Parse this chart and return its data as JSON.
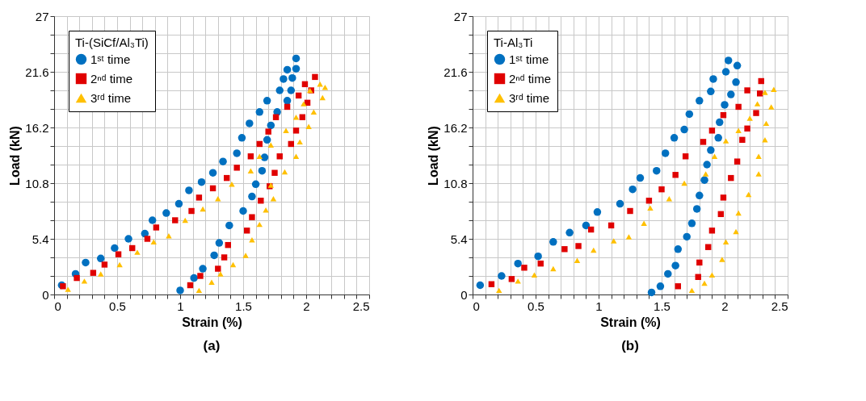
{
  "chart_data": [
    {
      "type": "scatter",
      "legend_title": "Ti-(SiCf/Al₃Ti)",
      "xlabel": "Strain (%)",
      "ylabel": "Load (kN)",
      "annotations": [
        "(a)"
      ],
      "legend": "top left",
      "grid": true,
      "xlim": [
        0,
        2.5
      ],
      "ylim": [
        0,
        27
      ],
      "xticks": [
        0,
        {
          "value": 0.1,
          "label": null
        },
        {
          "value": 0.2,
          "label": null
        },
        {
          "value": 0.3,
          "label": null
        },
        {
          "value": 0.4,
          "label": null
        },
        0.5,
        {
          "value": 0.6,
          "label": null
        },
        {
          "value": 0.7,
          "label": null
        },
        {
          "value": 0.8,
          "label": null
        },
        {
          "value": 0.9,
          "label": null
        },
        1,
        {
          "value": 1.1,
          "label": null
        },
        {
          "value": 1.2,
          "label": null
        },
        {
          "value": 1.3,
          "label": null
        },
        {
          "value": 1.4,
          "label": null
        },
        1.5,
        {
          "value": 1.6,
          "label": null
        },
        {
          "value": 1.7,
          "label": null
        },
        {
          "value": 1.8,
          "label": null
        },
        {
          "value": 1.9,
          "label": null
        },
        2,
        {
          "value": 2.1,
          "label": null
        },
        {
          "value": 2.2,
          "label": null
        },
        {
          "value": 2.3,
          "label": null
        },
        {
          "value": 2.4,
          "label": null
        },
        2.5
      ],
      "yticks": [
        0,
        {
          "value": 1.8,
          "label": null
        },
        {
          "value": 3.6,
          "label": null
        },
        5.4,
        {
          "value": 7.2,
          "label": null
        },
        {
          "value": 9,
          "label": null
        },
        10.8,
        {
          "value": 12.6,
          "label": null
        },
        {
          "value": 14.4,
          "label": null
        },
        16.2,
        {
          "value": 18,
          "label": null
        },
        {
          "value": 19.8,
          "label": null
        },
        21.6,
        {
          "value": 23.4,
          "label": null
        },
        {
          "value": 25.2,
          "label": null
        },
        27
      ],
      "series": [
        {
          "name": "1ˢᵗ time",
          "color": "#0070c0",
          "marker": "circle",
          "x": [
            0.06,
            0.17,
            0.25,
            0.37,
            0.48,
            0.59,
            0.72,
            0.78,
            0.89,
            0.99,
            1.07,
            1.17,
            1.26,
            1.34,
            1.45,
            1.49,
            1.55,
            1.63,
            1.69,
            1.79,
            1.82,
            1.85,
            1.92,
            1.92,
            1.89,
            1.88,
            1.85,
            1.77,
            1.72,
            1.69,
            1.67,
            1.65,
            1.6,
            1.57,
            1.5,
            1.39,
            1.31,
            1.27,
            1.18,
            1.11,
            1.0
          ],
          "values": [
            0.9,
            2.0,
            3.1,
            3.5,
            4.5,
            5.4,
            5.9,
            7.2,
            7.9,
            8.8,
            10.1,
            10.9,
            11.8,
            12.9,
            13.7,
            15.2,
            16.6,
            17.7,
            18.8,
            19.8,
            20.9,
            21.8,
            22.9,
            21.9,
            21.0,
            19.8,
            18.8,
            17.7,
            16.4,
            15.0,
            13.3,
            12.0,
            10.7,
            9.5,
            8.1,
            6.7,
            5.0,
            3.8,
            2.5,
            1.6,
            0.4
          ]
        },
        {
          "name": "2ⁿᵈ time",
          "color": "#e00000",
          "marker": "square",
          "x": [
            0.07,
            0.18,
            0.31,
            0.4,
            0.51,
            0.62,
            0.74,
            0.81,
            0.96,
            1.09,
            1.15,
            1.26,
            1.37,
            1.45,
            1.56,
            1.63,
            1.7,
            1.76,
            1.85,
            1.94,
            1.99,
            2.07,
            2.04,
            2.01,
            1.97,
            1.92,
            1.88,
            1.79,
            1.75,
            1.71,
            1.64,
            1.57,
            1.53,
            1.38,
            1.35,
            1.3,
            1.16,
            1.08
          ],
          "values": [
            0.8,
            1.6,
            2.1,
            2.9,
            3.9,
            4.5,
            5.4,
            6.5,
            7.2,
            8.1,
            9.4,
            10.3,
            11.3,
            12.3,
            13.4,
            14.6,
            15.8,
            17.2,
            18.2,
            19.3,
            20.4,
            21.1,
            19.8,
            18.6,
            17.2,
            15.9,
            14.6,
            13.4,
            11.8,
            10.5,
            9.1,
            7.5,
            6.2,
            4.8,
            3.6,
            2.5,
            1.8,
            0.9
          ]
        },
        {
          "name": "3ʳᵈ time",
          "color": "#ffc000",
          "marker": "triangle",
          "x": [
            0.11,
            0.24,
            0.37,
            0.52,
            0.66,
            0.79,
            0.91,
            1.04,
            1.18,
            1.3,
            1.41,
            1.56,
            1.63,
            1.72,
            1.84,
            1.92,
            1.98,
            2.03,
            2.11,
            2.15,
            2.13,
            2.06,
            2.02,
            1.95,
            1.92,
            1.83,
            1.72,
            1.74,
            1.68,
            1.63,
            1.57,
            1.52,
            1.42,
            1.32,
            1.25,
            1.15
          ],
          "values": [
            0.5,
            1.3,
            2.0,
            2.9,
            4.1,
            5.1,
            5.7,
            7.2,
            8.3,
            9.3,
            10.7,
            12.0,
            13.4,
            14.5,
            15.9,
            17.2,
            18.5,
            19.8,
            20.4,
            20.1,
            19.1,
            17.7,
            16.3,
            14.8,
            13.4,
            11.9,
            10.6,
            9.3,
            8.2,
            6.8,
            5.3,
            3.8,
            2.9,
            2.0,
            1.2,
            0.4
          ]
        }
      ]
    },
    {
      "type": "scatter",
      "legend_title": "Ti-Al₃Ti",
      "xlabel": "Strain (%)",
      "ylabel": "Load (kN)",
      "annotations": [
        "(b)"
      ],
      "legend": "top left",
      "grid": true,
      "xlim": [
        0,
        2.5
      ],
      "ylim": [
        0,
        27
      ],
      "xticks": [
        0,
        {
          "value": 0.1,
          "label": null
        },
        {
          "value": 0.2,
          "label": null
        },
        {
          "value": 0.3,
          "label": null
        },
        {
          "value": 0.4,
          "label": null
        },
        0.5,
        {
          "value": 0.6,
          "label": null
        },
        {
          "value": 0.7,
          "label": null
        },
        {
          "value": 0.8,
          "label": null
        },
        {
          "value": 0.9,
          "label": null
        },
        1,
        {
          "value": 1.1,
          "label": null
        },
        {
          "value": 1.2,
          "label": null
        },
        {
          "value": 1.3,
          "label": null
        },
        {
          "value": 1.4,
          "label": null
        },
        1.5,
        {
          "value": 1.6,
          "label": null
        },
        {
          "value": 1.7,
          "label": null
        },
        {
          "value": 1.8,
          "label": null
        },
        {
          "value": 1.9,
          "label": null
        },
        2,
        {
          "value": 2.1,
          "label": null
        },
        {
          "value": 2.2,
          "label": null
        },
        {
          "value": 2.3,
          "label": null
        },
        {
          "value": 2.4,
          "label": null
        },
        2.5
      ],
      "yticks": [
        0,
        {
          "value": 1.8,
          "label": null
        },
        {
          "value": 3.6,
          "label": null
        },
        5.4,
        {
          "value": 7.2,
          "label": null
        },
        {
          "value": 9,
          "label": null
        },
        10.8,
        {
          "value": 12.6,
          "label": null
        },
        {
          "value": 14.4,
          "label": null
        },
        16.2,
        {
          "value": 18,
          "label": null
        },
        {
          "value": 19.8,
          "label": null
        },
        21.6,
        {
          "value": 23.4,
          "label": null
        },
        {
          "value": 25.2,
          "label": null
        },
        27
      ],
      "series": [
        {
          "name": "1ˢᵗ time",
          "color": "#0070c0",
          "marker": "circle",
          "x": [
            0.06,
            0.23,
            0.36,
            0.52,
            0.64,
            0.77,
            0.9,
            0.99,
            1.17,
            1.27,
            1.33,
            1.46,
            1.53,
            1.6,
            1.68,
            1.72,
            1.8,
            1.89,
            1.91,
            2.01,
            2.03,
            2.1,
            2.09,
            2.05,
            2.0,
            1.96,
            1.95,
            1.89,
            1.86,
            1.84,
            1.8,
            1.78,
            1.74,
            1.7,
            1.63,
            1.61,
            1.55,
            1.49,
            1.42
          ],
          "values": [
            0.9,
            1.8,
            3.0,
            3.7,
            5.1,
            6.0,
            6.7,
            8.0,
            8.8,
            10.2,
            11.3,
            12.0,
            13.7,
            15.2,
            16.0,
            17.5,
            18.8,
            19.7,
            20.9,
            21.6,
            22.7,
            22.2,
            20.6,
            19.4,
            18.4,
            16.7,
            15.2,
            14.0,
            12.6,
            11.1,
            9.6,
            8.3,
            6.9,
            5.6,
            4.4,
            2.8,
            2.0,
            0.8,
            0.2
          ]
        },
        {
          "name": "2ⁿᵈ time",
          "color": "#e00000",
          "marker": "square",
          "x": [
            0.15,
            0.31,
            0.41,
            0.54,
            0.73,
            0.84,
            0.94,
            1.1,
            1.25,
            1.4,
            1.5,
            1.61,
            1.69,
            1.83,
            1.9,
            1.99,
            2.11,
            2.18,
            2.29,
            2.28,
            2.25,
            2.18,
            2.14,
            2.1,
            2.05,
            1.99,
            1.97,
            1.9,
            1.87,
            1.8,
            1.79,
            1.63
          ],
          "values": [
            1.0,
            1.5,
            2.6,
            3.0,
            4.4,
            4.7,
            6.3,
            6.7,
            8.1,
            9.1,
            10.2,
            11.6,
            13.4,
            14.8,
            15.9,
            17.4,
            18.2,
            19.8,
            20.7,
            19.5,
            17.6,
            16.1,
            15.0,
            12.9,
            11.3,
            9.4,
            7.8,
            6.2,
            4.6,
            3.1,
            1.7,
            0.8
          ]
        },
        {
          "name": "3ʳᵈ time",
          "color": "#ffc000",
          "marker": "triangle",
          "x": [
            0.21,
            0.36,
            0.49,
            0.64,
            0.83,
            0.96,
            1.12,
            1.24,
            1.36,
            1.41,
            1.56,
            1.68,
            1.85,
            1.92,
            2.01,
            2.11,
            2.2,
            2.26,
            2.32,
            2.39,
            2.37,
            2.33,
            2.32,
            2.27,
            2.27,
            2.19,
            2.11,
            2.09,
            2.01,
            1.98,
            1.9,
            1.84,
            1.74
          ],
          "values": [
            0.4,
            1.3,
            1.9,
            2.5,
            3.3,
            4.3,
            5.2,
            5.6,
            6.9,
            8.4,
            9.3,
            10.8,
            11.7,
            13.4,
            14.9,
            15.9,
            17.1,
            18.5,
            19.6,
            19.9,
            18.2,
            16.6,
            15.0,
            13.4,
            11.7,
            9.7,
            7.9,
            6.1,
            5.1,
            3.4,
            1.9,
            1.1,
            0.4
          ]
        }
      ]
    }
  ]
}
